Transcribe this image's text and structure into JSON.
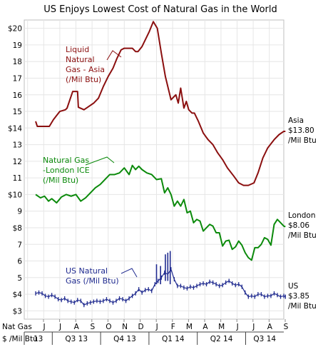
{
  "chart_data": {
    "type": "line",
    "title": "US Enjoys Lowest Cost of Natural Gas in the World",
    "ylim": [
      2.5,
      20.5
    ],
    "y_ticks": [
      {
        "v": 20,
        "label": "$20"
      },
      {
        "v": 19,
        "label": "19"
      },
      {
        "v": 18,
        "label": "18"
      },
      {
        "v": 17,
        "label": "17"
      },
      {
        "v": 16,
        "label": "16"
      },
      {
        "v": 15,
        "label": "15"
      },
      {
        "v": 14,
        "label": "$14"
      },
      {
        "v": 13,
        "label": "13"
      },
      {
        "v": 12,
        "label": "12"
      },
      {
        "v": 11,
        "label": "11"
      },
      {
        "v": 10,
        "label": "$10"
      },
      {
        "v": 9,
        "label": "9"
      },
      {
        "v": 8,
        "label": "$8"
      },
      {
        "v": 7,
        "label": "7"
      },
      {
        "v": 6,
        "label": "6"
      },
      {
        "v": 5,
        "label": "5"
      },
      {
        "v": 4,
        "label": "$4"
      },
      {
        "v": 3,
        "label": "$3"
      }
    ],
    "x_label_left": [
      "Nat Gas",
      "$ /Mil Btu"
    ],
    "months": [
      "J",
      "J",
      "A",
      "S",
      "O",
      "N",
      "D",
      "J",
      "F",
      "M",
      "A",
      "M",
      "J",
      "J",
      "A",
      "S"
    ],
    "quarters": [
      {
        "label": "13",
        "start": 0,
        "end": 1
      },
      {
        "label": "Q3 13",
        "start": 1,
        "end": 4
      },
      {
        "label": "Q4 13",
        "start": 4,
        "end": 7
      },
      {
        "label": "Q1 14",
        "start": 7,
        "end": 10
      },
      {
        "label": "Q2 14",
        "start": 10,
        "end": 13
      },
      {
        "label": "Q3 14",
        "start": 13,
        "end": 16
      }
    ],
    "series": [
      {
        "name": "Liquid Natural Gas - Asia (/Mil Btu)",
        "color": "#8b0f0f",
        "annotation": [
          "Liquid",
          "Natural",
          "Gas - Asia",
          "(/Mil Btu)"
        ],
        "end_label": [
          "Asia",
          "$13.80",
          "/Mil Btu"
        ],
        "x": [
          0,
          0.1,
          0.6,
          0.85,
          1.1,
          1.5,
          1.85,
          1.95,
          2.3,
          2.6,
          2.65,
          3.0,
          3.3,
          3.6,
          3.9,
          4.2,
          4.5,
          4.8,
          5.05,
          5.3,
          5.5,
          5.7,
          6.0,
          6.2,
          6.35,
          6.6,
          6.8,
          7.05,
          7.3,
          7.55,
          7.8,
          8.05,
          8.4,
          8.7,
          8.85,
          9.0,
          9.2,
          9.35,
          9.5,
          9.7,
          9.85,
          10.1,
          10.4,
          10.7,
          11.0,
          11.3,
          11.6,
          11.9,
          12.3,
          12.6,
          12.9,
          13.2,
          13.55,
          13.8,
          14.1,
          14.4,
          14.8,
          15.1,
          15.4,
          15.5
        ],
        "values": [
          14.4,
          14.1,
          14.1,
          14.1,
          14.5,
          15.0,
          15.1,
          15.2,
          16.2,
          16.2,
          15.25,
          15.1,
          15.3,
          15.5,
          15.8,
          16.5,
          17.1,
          17.6,
          18.2,
          18.7,
          18.8,
          18.8,
          18.8,
          18.6,
          18.6,
          18.9,
          19.3,
          19.8,
          20.4,
          20.0,
          18.5,
          17.1,
          15.7,
          16.0,
          15.5,
          16.4,
          15.2,
          15.6,
          15.1,
          14.9,
          14.9,
          14.4,
          13.7,
          13.3,
          13.0,
          12.5,
          12.1,
          11.6,
          11.1,
          10.7,
          10.55,
          10.55,
          10.7,
          11.3,
          12.2,
          12.8,
          13.3,
          13.6,
          13.8,
          13.8
        ]
      },
      {
        "name": "Natural Gas -London ICE (/Mil Btu)",
        "color": "#0b8a0b",
        "annotation": [
          "Natural Gas",
          "-London ICE",
          "(/Mil Btu)"
        ],
        "end_label": [
          "London",
          "$8.06",
          "/Mil Btu"
        ],
        "x": [
          0,
          0.3,
          0.55,
          0.8,
          1.0,
          1.3,
          1.6,
          1.9,
          2.2,
          2.5,
          2.8,
          3.1,
          3.4,
          3.7,
          4.0,
          4.3,
          4.6,
          4.9,
          5.2,
          5.5,
          5.8,
          6.0,
          6.2,
          6.4,
          6.6,
          6.9,
          7.2,
          7.5,
          7.8,
          8.0,
          8.2,
          8.4,
          8.6,
          8.8,
          9.0,
          9.2,
          9.4,
          9.6,
          9.8,
          10.0,
          10.2,
          10.4,
          10.6,
          10.8,
          11.0,
          11.2,
          11.4,
          11.6,
          11.8,
          12.0,
          12.2,
          12.4,
          12.6,
          12.8,
          13.0,
          13.2,
          13.4,
          13.6,
          13.8,
          14.0,
          14.2,
          14.4,
          14.6,
          14.8,
          15.0,
          15.2,
          15.4,
          15.5
        ],
        "values": [
          10.0,
          9.8,
          9.9,
          9.6,
          9.75,
          9.5,
          9.85,
          10.0,
          9.9,
          10.0,
          9.6,
          9.8,
          10.1,
          10.4,
          10.6,
          10.9,
          11.2,
          11.2,
          11.3,
          11.6,
          11.2,
          11.75,
          11.5,
          11.7,
          11.5,
          11.3,
          11.2,
          10.9,
          10.95,
          10.1,
          10.4,
          10.0,
          9.3,
          9.6,
          9.3,
          9.7,
          8.9,
          9.0,
          8.3,
          8.5,
          8.4,
          7.8,
          8.0,
          8.2,
          8.1,
          7.7,
          7.7,
          6.9,
          7.2,
          7.25,
          6.7,
          6.85,
          7.2,
          6.95,
          6.5,
          6.2,
          6.05,
          6.8,
          6.8,
          7.0,
          7.4,
          7.3,
          6.95,
          8.2,
          8.5,
          8.3,
          8.1,
          8.06
        ]
      },
      {
        "name": "US Natural Gas (/Mil Btu)",
        "color": "#1f2a8f",
        "annotation": [
          "US Natural",
          "Gas (/Mil Btu)"
        ],
        "end_label": [
          "US",
          "$3.85",
          "/Mil Btu"
        ],
        "x": [
          0,
          0.2,
          0.4,
          0.6,
          0.8,
          1.0,
          1.2,
          1.4,
          1.6,
          1.8,
          2.0,
          2.2,
          2.4,
          2.6,
          2.8,
          3.0,
          3.2,
          3.4,
          3.6,
          3.8,
          4.0,
          4.2,
          4.4,
          4.6,
          4.8,
          5.0,
          5.2,
          5.4,
          5.6,
          5.8,
          6.0,
          6.2,
          6.4,
          6.6,
          6.8,
          7.0,
          7.2,
          7.4,
          7.6,
          7.8,
          8.0,
          8.2,
          8.4,
          8.6,
          8.8,
          9.0,
          9.2,
          9.4,
          9.6,
          9.8,
          10.0,
          10.2,
          10.4,
          10.6,
          10.8,
          11.0,
          11.2,
          11.4,
          11.6,
          11.8,
          12.0,
          12.2,
          12.4,
          12.6,
          12.8,
          13.0,
          13.2,
          13.4,
          13.6,
          13.8,
          14.0,
          14.2,
          14.4,
          14.6,
          14.8,
          15.0,
          15.2,
          15.4,
          15.5
        ],
        "values": [
          4.05,
          4.1,
          4.05,
          3.9,
          3.85,
          3.95,
          3.85,
          3.7,
          3.65,
          3.75,
          3.6,
          3.55,
          3.5,
          3.65,
          3.6,
          3.35,
          3.45,
          3.5,
          3.55,
          3.6,
          3.55,
          3.6,
          3.7,
          3.6,
          3.5,
          3.6,
          3.75,
          3.7,
          3.6,
          3.75,
          3.9,
          4.05,
          4.3,
          4.1,
          4.25,
          4.3,
          4.2,
          4.6,
          4.8,
          5.0,
          5.3,
          5.2,
          5.5,
          4.9,
          4.5,
          4.5,
          4.4,
          4.35,
          4.45,
          4.4,
          4.5,
          4.6,
          4.65,
          4.6,
          4.75,
          4.7,
          4.6,
          4.5,
          4.55,
          4.7,
          4.8,
          4.65,
          4.55,
          4.6,
          4.45,
          4.1,
          3.85,
          3.9,
          3.85,
          4.0,
          4.0,
          3.85,
          3.9,
          3.9,
          4.05,
          3.95,
          3.85,
          3.9,
          3.85
        ],
        "spikes": [
          {
            "x": 7.5,
            "low": 4.6,
            "high": 5.8
          },
          {
            "x": 7.75,
            "low": 4.6,
            "high": 5.7
          },
          {
            "x": 8.05,
            "low": 4.8,
            "high": 6.4
          },
          {
            "x": 8.2,
            "low": 4.8,
            "high": 6.5
          },
          {
            "x": 8.35,
            "low": 4.6,
            "high": 6.6
          }
        ]
      }
    ]
  }
}
